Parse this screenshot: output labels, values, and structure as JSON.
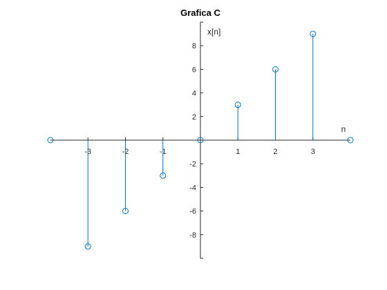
{
  "chart_data": {
    "type": "stem",
    "title": "Grafica C",
    "xlabel": "n",
    "ylabel": "x[n]",
    "x": [
      -4,
      -3,
      -2,
      -1,
      0,
      1,
      2,
      3,
      4
    ],
    "y": [
      0,
      -9,
      -6,
      -3,
      0,
      3,
      6,
      9,
      0
    ],
    "xlim": [
      -4,
      4
    ],
    "ylim": [
      -10,
      10
    ],
    "x_ticks": [
      -3,
      -2,
      -1,
      1,
      2,
      3
    ],
    "y_ticks": [
      -8,
      -6,
      -4,
      -2,
      2,
      4,
      6,
      8
    ],
    "axis_location": "origin",
    "marker": "open-circle",
    "grid": false,
    "color": "#0072BD",
    "axis_color": "#262626"
  }
}
